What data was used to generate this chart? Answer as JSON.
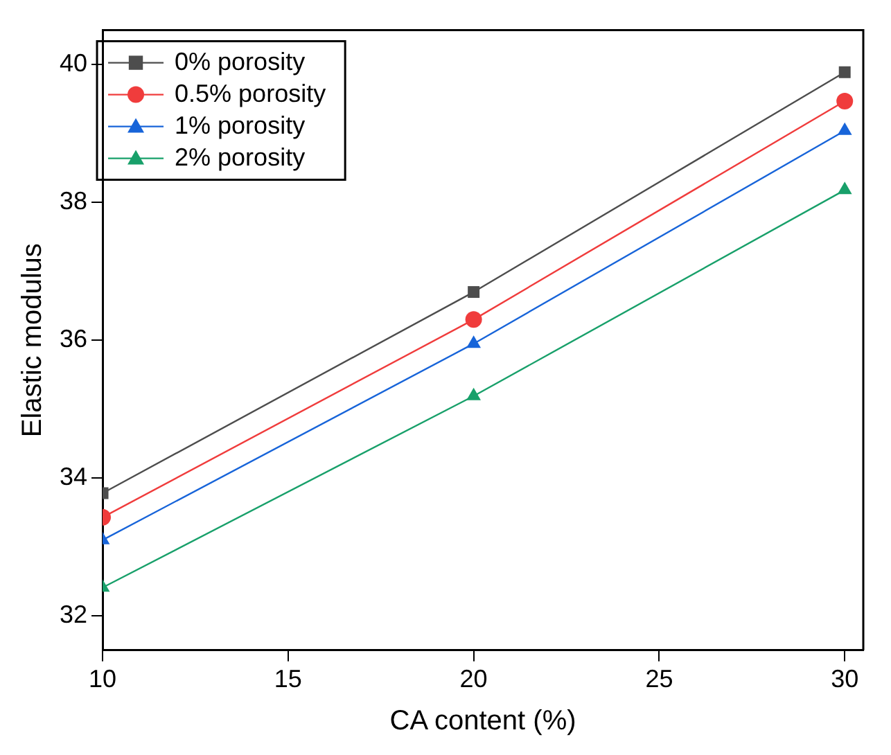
{
  "chart_data": {
    "type": "line",
    "xlabel": "CA content (%)",
    "ylabel": "Elastic modulus",
    "x": [
      10,
      20,
      30
    ],
    "series": [
      {
        "name": "0% porosity",
        "color": "#4d4d4d",
        "marker": "square",
        "values": [
          33.78,
          36.7,
          39.89
        ]
      },
      {
        "name": "0.5% porosity",
        "color": "#f03c3c",
        "marker": "circle",
        "values": [
          33.43,
          36.3,
          39.47
        ]
      },
      {
        "name": "1% porosity",
        "color": "#1764d9",
        "marker": "triangle",
        "values": [
          33.1,
          35.95,
          39.04
        ]
      },
      {
        "name": "2% porosity",
        "color": "#18a06a",
        "marker": "triangle",
        "values": [
          32.41,
          35.19,
          38.18
        ]
      }
    ],
    "xlim": [
      10,
      30.5
    ],
    "xticks": [
      10,
      15,
      20,
      25,
      30
    ],
    "ylim": [
      31.5,
      40.5
    ],
    "yticks": [
      32,
      34,
      36,
      38,
      40
    ],
    "grid": false,
    "legend": "top left",
    "line_style": "solid"
  }
}
